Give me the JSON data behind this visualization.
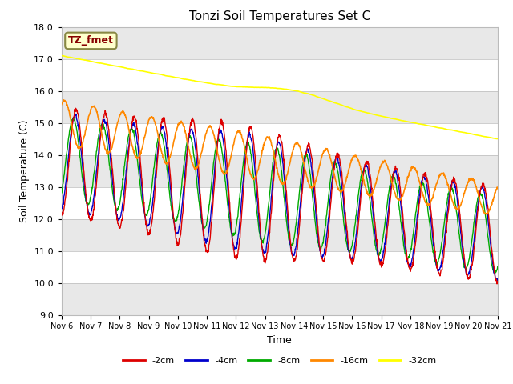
{
  "title": "Tonzi Soil Temperatures Set C",
  "xlabel": "Time",
  "ylabel": "Soil Temperature (C)",
  "ylim": [
    9.0,
    18.0
  ],
  "yticks": [
    9.0,
    10.0,
    11.0,
    12.0,
    13.0,
    14.0,
    15.0,
    16.0,
    17.0,
    18.0
  ],
  "x_labels": [
    "Nov 6",
    "Nov 7",
    "Nov 8",
    "Nov 9",
    "Nov 10",
    "Nov 11",
    "Nov 12",
    "Nov 13",
    "Nov 14",
    "Nov 15",
    "Nov 16",
    "Nov 17",
    "Nov 18",
    "Nov 19",
    "Nov 20",
    "Nov 21"
  ],
  "series": {
    "-2cm": {
      "color": "#dd0000",
      "lw": 1.0
    },
    "-4cm": {
      "color": "#0000cc",
      "lw": 1.0
    },
    "-8cm": {
      "color": "#00aa00",
      "lw": 1.0
    },
    "-16cm": {
      "color": "#ff8800",
      "lw": 1.2
    },
    "-32cm": {
      "color": "#ffff00",
      "lw": 1.2
    }
  },
  "annotation_text": "TZ_fmet",
  "annotation_color": "#880000",
  "annotation_bg": "#ffffcc",
  "fig_bg": "#ffffff",
  "plot_bg_light": "#ffffff",
  "plot_bg_dark": "#e8e8e8"
}
